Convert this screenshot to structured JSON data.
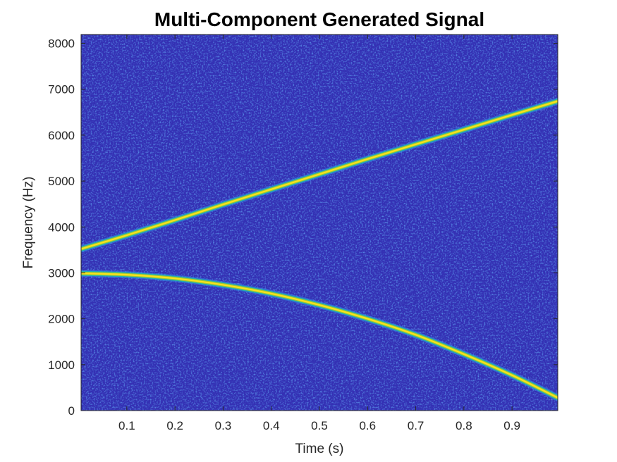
{
  "chart_data": {
    "type": "heatmap",
    "title": "Multi-Component Generated Signal",
    "xlabel": "Time (s)",
    "ylabel": "Frequency (Hz)",
    "xlim": [
      0.005,
      0.995
    ],
    "ylim": [
      0,
      8192
    ],
    "xticks": [
      0.1,
      0.2,
      0.3,
      0.4,
      0.5,
      0.6,
      0.7,
      0.8,
      0.9
    ],
    "xtick_labels": [
      "0.1",
      "0.2",
      "0.3",
      "0.4",
      "0.5",
      "0.6",
      "0.7",
      "0.8",
      "0.9"
    ],
    "yticks": [
      0,
      1000,
      2000,
      3000,
      4000,
      5000,
      6000,
      7000,
      8000
    ],
    "ytick_labels": [
      "0",
      "1000",
      "2000",
      "3000",
      "4000",
      "5000",
      "6000",
      "7000",
      "8000"
    ],
    "colormap": "parula",
    "colors": {
      "background": "#3431b4",
      "ridge": "#f9e31c"
    },
    "grid": false,
    "series": [
      {
        "x": [
          0.005,
          0.1,
          0.2,
          0.3,
          0.4,
          0.5,
          0.6,
          0.7,
          0.8,
          0.9,
          0.995
        ],
        "values": [
          3520,
          3820,
          4150,
          4490,
          4820,
          5150,
          5480,
          5800,
          6120,
          6440,
          6740
        ]
      },
      {
        "x": [
          0.005,
          0.1,
          0.2,
          0.3,
          0.4,
          0.5,
          0.6,
          0.7,
          0.8,
          0.9,
          0.995
        ],
        "values": [
          2990,
          2960,
          2880,
          2740,
          2550,
          2300,
          2000,
          1650,
          1230,
          770,
          280
        ]
      }
    ]
  }
}
